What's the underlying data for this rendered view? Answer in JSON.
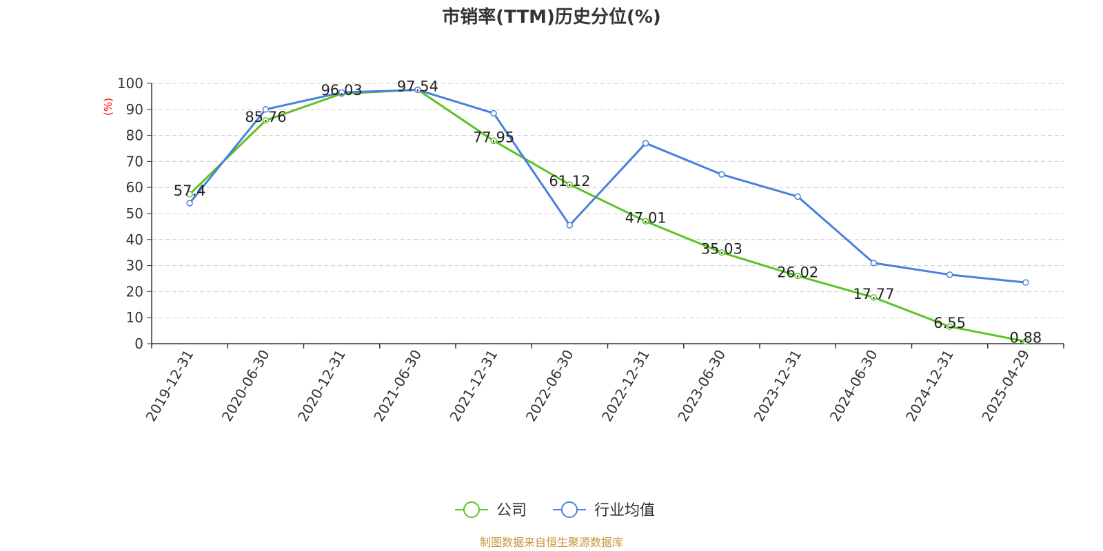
{
  "chart_data": {
    "type": "line",
    "title": "市销率(TTM)历史分位(%)",
    "ylabel": "(%)",
    "ylim": [
      0,
      100
    ],
    "yticks": [
      0,
      10,
      20,
      30,
      40,
      50,
      60,
      70,
      80,
      90,
      100
    ],
    "grid": true,
    "legend_position": "bottom-center",
    "categories": [
      "2019-12-31",
      "2020-06-30",
      "2020-12-31",
      "2021-06-30",
      "2021-12-31",
      "2022-06-30",
      "2022-12-31",
      "2023-06-30",
      "2023-12-31",
      "2024-06-30",
      "2024-12-31",
      "2025-04-29"
    ],
    "series": [
      {
        "name": "公司",
        "color": "#5cc321",
        "values": [
          57.4,
          85.76,
          96.03,
          97.54,
          77.95,
          61.12,
          47.01,
          35.03,
          26.02,
          17.77,
          6.55,
          0.88
        ],
        "labels": [
          "57.4",
          "85.76",
          "96.03",
          "97.54",
          "77.95",
          "61.12",
          "47.01",
          "35.03",
          "26.02",
          "17.77",
          "6.55",
          "0.88"
        ]
      },
      {
        "name": "行业均值",
        "color": "#4a7fdb",
        "values": [
          54.0,
          90.0,
          96.5,
          97.5,
          88.5,
          45.5,
          77.0,
          65.0,
          56.5,
          31.0,
          26.5,
          23.5
        ]
      }
    ],
    "source": "制图数据来自恒生聚源数据库"
  }
}
